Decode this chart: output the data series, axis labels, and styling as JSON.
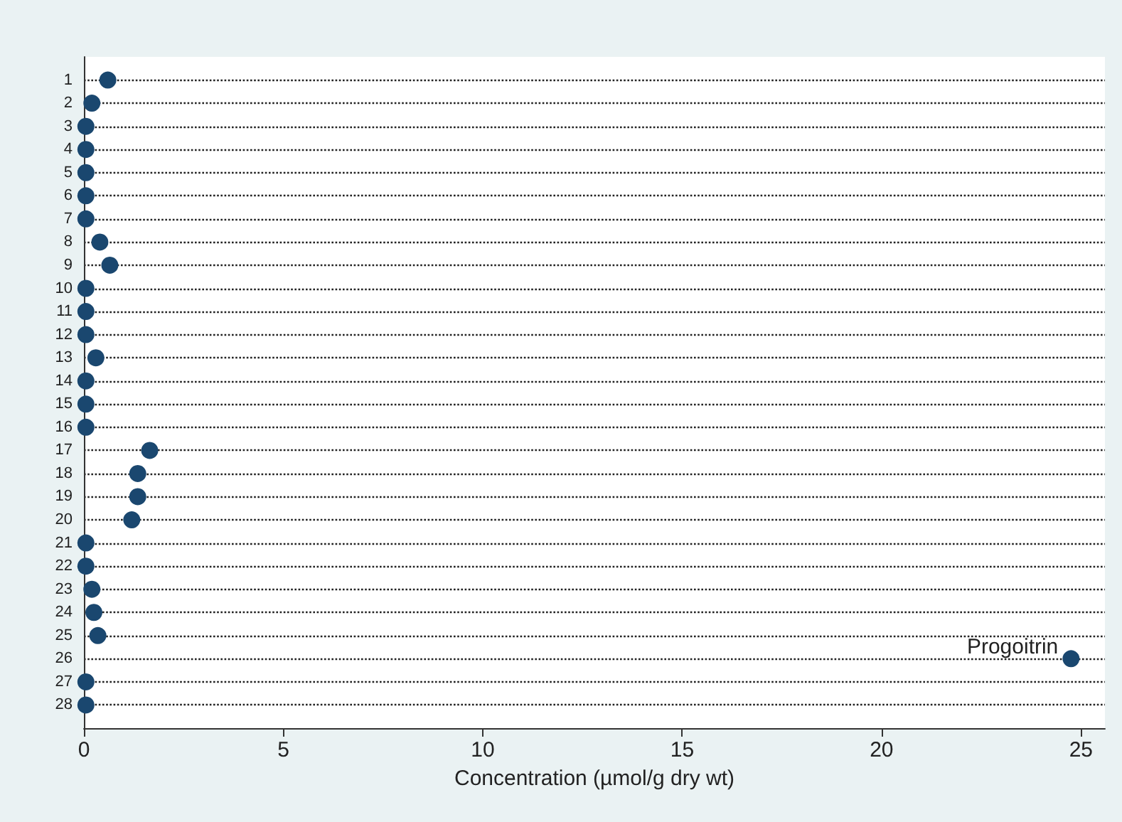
{
  "chart_data": {
    "type": "scatter",
    "orientation": "horizontal",
    "xlabel": "Concentration (µmol/g dry wt)",
    "categories": [
      "1",
      "2",
      "3",
      "4",
      "5",
      "6",
      "7",
      "8",
      "9",
      "10",
      "11",
      "12",
      "13",
      "14",
      "15",
      "16",
      "17",
      "18",
      "19",
      "20",
      "21",
      "22",
      "23",
      "24",
      "25",
      "26",
      "27",
      "28"
    ],
    "series": [
      {
        "color": "#1a476f",
        "values": [
          0.6,
          0.2,
          0.05,
          0.05,
          0.05,
          0.05,
          0.05,
          0.4,
          0.65,
          0.05,
          0.05,
          0.05,
          0.3,
          0.05,
          0.05,
          0.05,
          1.65,
          1.35,
          1.35,
          1.2,
          0.05,
          0.05,
          0.2,
          0.25,
          0.35,
          24.75,
          0.05,
          0.05
        ]
      }
    ],
    "xlim": [
      0,
      25.6
    ],
    "xticks": [
      0,
      5,
      10,
      15,
      20,
      25
    ],
    "grid": "y",
    "marker": "circle",
    "annotations": [
      {
        "text": "Progoitrin",
        "x": 24.75,
        "y": "26"
      }
    ]
  }
}
